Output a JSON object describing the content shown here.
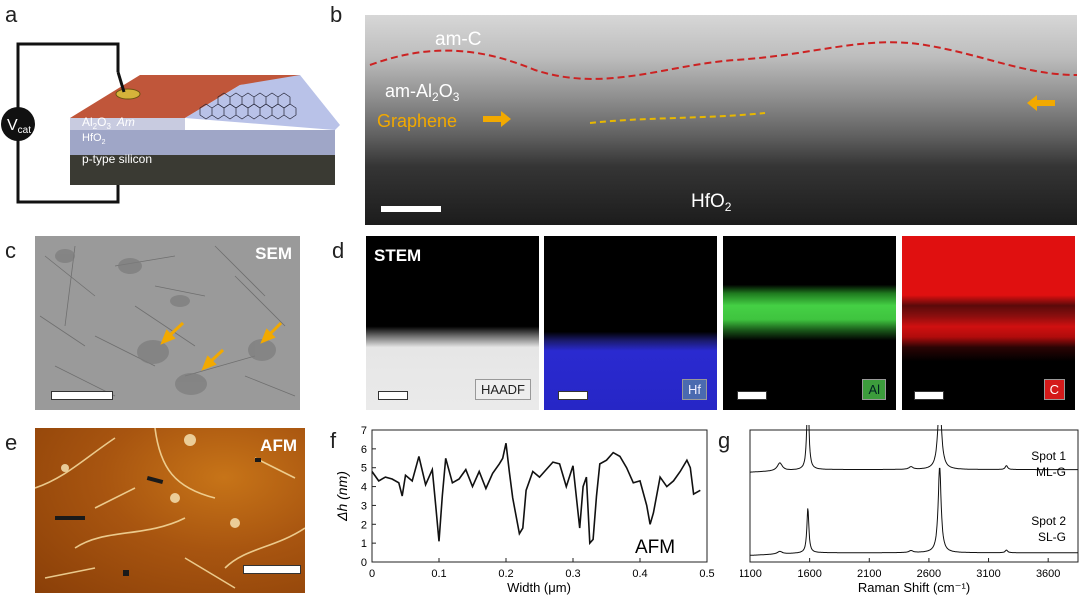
{
  "panels": {
    "a": {
      "label": "a",
      "voltage_symbol": "V",
      "voltage_subscript": "cat",
      "layer_al2o3": "Al",
      "layer_al2o3_sub1": "2",
      "layer_al2o3_mid": "O",
      "layer_al2o3_sub2": "3",
      "layer_am": "Am",
      "layer_hfo2": "HfO",
      "layer_hfo2_sub": "2",
      "substrate": "p-type silicon"
    },
    "b": {
      "label": "b",
      "am_c": "am-C",
      "am_al2o3": "am-Al",
      "am_al2o3_sub1": "2",
      "am_al2o3_mid": "O",
      "am_al2o3_sub2": "3",
      "graphene": "Graphene",
      "hfo2": "HfO",
      "hfo2_sub": "2"
    },
    "c": {
      "label": "c",
      "tag": "SEM"
    },
    "d": {
      "label": "d",
      "tag": "STEM",
      "channels": [
        "HAADF",
        "Hf",
        "Al",
        "C"
      ]
    },
    "e": {
      "label": "e",
      "tag": "AFM"
    },
    "f": {
      "label": "f",
      "inset": "AFM"
    },
    "g": {
      "label": "g",
      "spot1_line1": "Spot 1",
      "spot1_line2": "ML-G",
      "spot2_line1": "Spot 2",
      "spot2_line2": "SL-G"
    }
  },
  "colors": {
    "graphene_arrow": "#f2a900",
    "interface_dash": "#cc2222",
    "graphene_dash": "#e8b800"
  },
  "chart_data": [
    {
      "panel": "f",
      "type": "line",
      "xlabel": "Width (μm)",
      "ylabel": "Δh (nm)",
      "xlim": [
        0,
        0.5
      ],
      "ylim": [
        0,
        7
      ],
      "xticks": [
        "0",
        "0.1",
        "0.2",
        "0.3",
        "0.4",
        "0.5"
      ],
      "yticks": [
        "0",
        "1",
        "2",
        "3",
        "4",
        "5",
        "6",
        "7"
      ],
      "x": [
        0,
        0.01,
        0.02,
        0.03,
        0.04,
        0.045,
        0.05,
        0.06,
        0.07,
        0.08,
        0.09,
        0.095,
        0.1,
        0.105,
        0.11,
        0.12,
        0.13,
        0.14,
        0.15,
        0.16,
        0.17,
        0.18,
        0.19,
        0.195,
        0.2,
        0.205,
        0.21,
        0.22,
        0.225,
        0.23,
        0.24,
        0.25,
        0.26,
        0.27,
        0.28,
        0.29,
        0.3,
        0.31,
        0.315,
        0.32,
        0.325,
        0.33,
        0.335,
        0.34,
        0.35,
        0.36,
        0.37,
        0.38,
        0.39,
        0.4,
        0.41,
        0.415,
        0.42,
        0.43,
        0.44,
        0.45,
        0.46,
        0.47,
        0.475,
        0.48,
        0.49
      ],
      "y": [
        4.8,
        4.3,
        4.5,
        4.4,
        4.2,
        3.5,
        4.6,
        4.3,
        5.6,
        4.1,
        4.9,
        3.0,
        1.1,
        3.5,
        5.5,
        4.2,
        4.4,
        4.9,
        4.0,
        4.8,
        3.9,
        4.7,
        5.2,
        5.5,
        6.3,
        4.8,
        3.4,
        1.5,
        1.8,
        3.8,
        4.8,
        4.5,
        4.9,
        5.3,
        5.2,
        4.0,
        5.1,
        1.8,
        4.0,
        4.5,
        1.0,
        1.2,
        3.5,
        5.2,
        5.4,
        5.8,
        5.6,
        5.0,
        4.2,
        4.3,
        3.0,
        2.0,
        2.6,
        4.5,
        4.0,
        4.3,
        4.8,
        5.4,
        5.0,
        3.6,
        3.8
      ]
    },
    {
      "panel": "g",
      "type": "line",
      "xlabel": "Raman Shift (cm⁻¹)",
      "ylabel": "",
      "xlim": [
        1100,
        3850
      ],
      "xticks": [
        "1100",
        "1600",
        "2100",
        "2600",
        "3100",
        "3600"
      ],
      "series": [
        {
          "name": "Spot 1 ML-G",
          "baseline": 0.3,
          "peaks": [
            [
              1350,
              0.06,
              25
            ],
            [
              1585,
              0.62,
              10
            ],
            [
              2450,
              0.02,
              20
            ],
            [
              2690,
              0.55,
              18
            ],
            [
              3250,
              0.03,
              12
            ]
          ]
        },
        {
          "name": "Spot 2 SL-G",
          "baseline": 0.93,
          "peaks": [
            [
              1350,
              0.02,
              25
            ],
            [
              1585,
              0.34,
              10
            ],
            [
              2450,
              0.015,
              20
            ],
            [
              2690,
              0.65,
              15
            ],
            [
              3250,
              0.02,
              12
            ]
          ]
        }
      ]
    }
  ]
}
